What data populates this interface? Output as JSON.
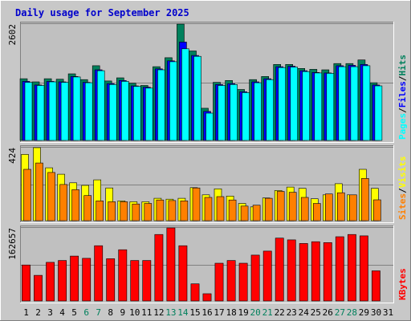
{
  "title": "Daily usage for September 2025",
  "colors": {
    "outer_bg": "#c8c8c8",
    "panel_bg": "#c0c0c0",
    "title": "#0000cc",
    "hits": "#00805c",
    "files": "#0000ff",
    "pages": "#00ffff",
    "visits": "#ffff00",
    "sites": "#ff8000",
    "kbytes": "#ff0000",
    "weekday_label": "#000000",
    "weekend_label": "#00805c"
  },
  "chart_data": {
    "type": "bar",
    "categories": [
      "1",
      "2",
      "3",
      "4",
      "5",
      "6",
      "7",
      "8",
      "9",
      "10",
      "11",
      "12",
      "13",
      "14",
      "15",
      "16",
      "17",
      "18",
      "19",
      "20",
      "21",
      "22",
      "23",
      "24",
      "25",
      "26",
      "27",
      "28",
      "29",
      "30",
      "31"
    ],
    "weekend_days": [
      6,
      7,
      13,
      14,
      20,
      21,
      27,
      28
    ],
    "panels": [
      {
        "id": "requests",
        "ymax_label": "2602",
        "ymax": 2602,
        "side_labels": [
          {
            "text": "Hits",
            "color": "#00805c"
          },
          {
            "text": "Files",
            "color": "#0000ff"
          },
          {
            "text": "Pages",
            "color": "#00ffff"
          }
        ],
        "series": [
          {
            "name": "Hits",
            "values": [
              1380,
              1310,
              1380,
              1370,
              1490,
              1360,
              1670,
              1330,
              1400,
              1280,
              1230,
              1650,
              1850,
              2602,
              2000,
              720,
              1300,
              1340,
              1140,
              1360,
              1430,
              1700,
              1700,
              1610,
              1590,
              1580,
              1720,
              1720,
              1800,
              1290,
              0
            ]
          },
          {
            "name": "Files",
            "values": [
              1320,
              1240,
              1320,
              1310,
              1430,
              1300,
              1580,
              1270,
              1340,
              1220,
              1190,
              1600,
              1780,
              2200,
              1900,
              650,
              1250,
              1270,
              1090,
              1310,
              1380,
              1650,
              1660,
              1560,
              1520,
              1510,
              1670,
              1680,
              1700,
              1240,
              0
            ]
          },
          {
            "name": "Pages",
            "values": [
              1300,
              1230,
              1310,
              1300,
              1420,
              1290,
              1560,
              1250,
              1320,
              1210,
              1170,
              1580,
              1760,
              2050,
              1880,
              610,
              1230,
              1250,
              1070,
              1290,
              1360,
              1630,
              1640,
              1540,
              1510,
              1500,
              1650,
              1650,
              1670,
              1220,
              0
            ]
          }
        ]
      },
      {
        "id": "visitors",
        "ymax_label": "424",
        "ymax": 424,
        "side_labels": [
          {
            "text": "Visits",
            "color": "#ffff00"
          },
          {
            "text": "Sites",
            "color": "#ff8000"
          }
        ],
        "series": [
          {
            "name": "Visits",
            "values": [
              385,
              424,
              307,
              270,
              220,
              205,
              237,
              190,
              115,
              110,
              110,
              130,
              125,
              130,
              192,
              150,
              185,
              143,
              100,
              80,
              132,
              175,
              195,
              188,
              127,
              150,
              215,
              150,
              298,
              188,
              0
            ]
          },
          {
            "name": "Sites",
            "values": [
              298,
              335,
              280,
              210,
              180,
              146,
              115,
              110,
              110,
              97,
              100,
              120,
              117,
              115,
              190,
              135,
              140,
              120,
              85,
              90,
              130,
              170,
              165,
              135,
              100,
              155,
              162,
              150,
              245,
              121,
              0
            ]
          }
        ]
      },
      {
        "id": "kbytes",
        "ymax_label": "162657",
        "ymax": 162657,
        "side_labels": [
          {
            "text": "KBytes",
            "color": "#ff0000"
          }
        ],
        "series": [
          {
            "name": "KBytes",
            "values": [
              80000,
              57000,
              86000,
              90000,
              100000,
              95000,
              123000,
              94000,
              114000,
              90000,
              90000,
              148000,
              162657,
              123000,
              38000,
              16000,
              84000,
              90000,
              84000,
              102000,
              111000,
              140000,
              136000,
              128000,
              132000,
              130000,
              143000,
              148000,
              145000,
              67000,
              0
            ]
          }
        ]
      }
    ]
  }
}
